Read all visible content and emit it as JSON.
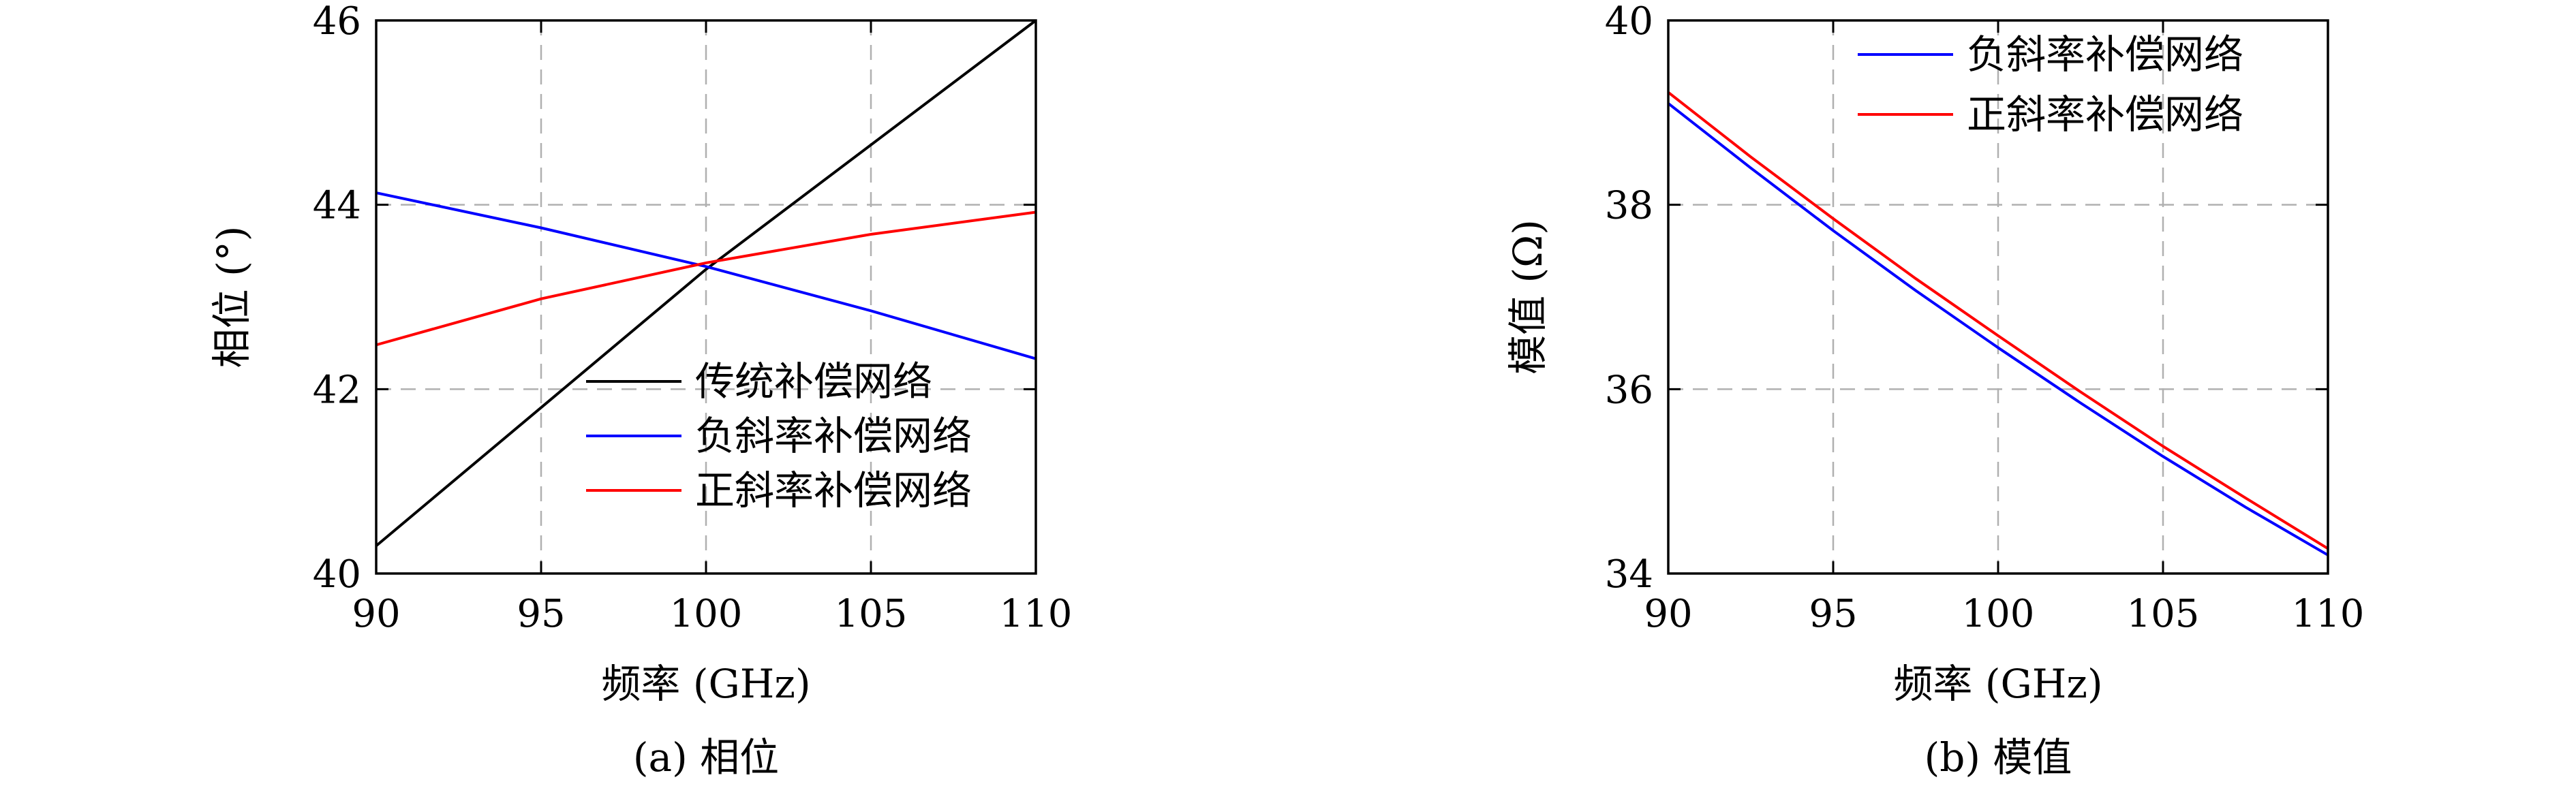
{
  "chart_data": [
    {
      "type": "line",
      "caption": "(a) 相位",
      "xlabel": "频率 (GHz)",
      "ylabel": "相位 (°)",
      "xlim": [
        90,
        110
      ],
      "ylim": [
        40,
        46
      ],
      "xticks": [
        90,
        95,
        100,
        105,
        110
      ],
      "yticks": [
        40,
        42,
        44,
        46
      ],
      "grid": true,
      "legend_position": "lower-right",
      "series": [
        {
          "name": "传统补偿网络",
          "color": "#000000",
          "x": [
            90,
            100,
            110
          ],
          "y": [
            40.3,
            43.3,
            46.0
          ]
        },
        {
          "name": "负斜率补偿网络",
          "color": "#0000ff",
          "x": [
            90,
            95,
            100,
            105,
            110
          ],
          "y": [
            44.13,
            43.75,
            43.33,
            42.85,
            42.33
          ]
        },
        {
          "name": "正斜率补偿网络",
          "color": "#ff0000",
          "x": [
            90,
            95,
            100,
            105,
            110
          ],
          "y": [
            42.48,
            42.98,
            43.37,
            43.68,
            43.92
          ]
        }
      ]
    },
    {
      "type": "line",
      "caption": "(b) 模值",
      "xlabel": "频率 (GHz)",
      "ylabel": "模值 (Ω)",
      "xlim": [
        90,
        110
      ],
      "ylim": [
        34,
        40
      ],
      "xticks": [
        90,
        95,
        100,
        105,
        110
      ],
      "yticks": [
        34,
        36,
        38,
        40
      ],
      "grid": true,
      "legend_position": "upper-right",
      "series": [
        {
          "name": "负斜率补偿网络",
          "color": "#0000ff",
          "x": [
            90,
            92.5,
            95,
            97.5,
            100,
            102.5,
            105,
            107.5,
            110
          ],
          "y": [
            39.1,
            38.4,
            37.72,
            37.07,
            36.45,
            35.85,
            35.27,
            34.72,
            34.2
          ]
        },
        {
          "name": "正斜率补偿网络",
          "color": "#ff0000",
          "x": [
            90,
            92.5,
            95,
            97.5,
            100,
            102.5,
            105,
            107.5,
            110
          ],
          "y": [
            39.22,
            38.52,
            37.85,
            37.2,
            36.58,
            35.97,
            35.38,
            34.82,
            34.27
          ]
        }
      ]
    }
  ]
}
